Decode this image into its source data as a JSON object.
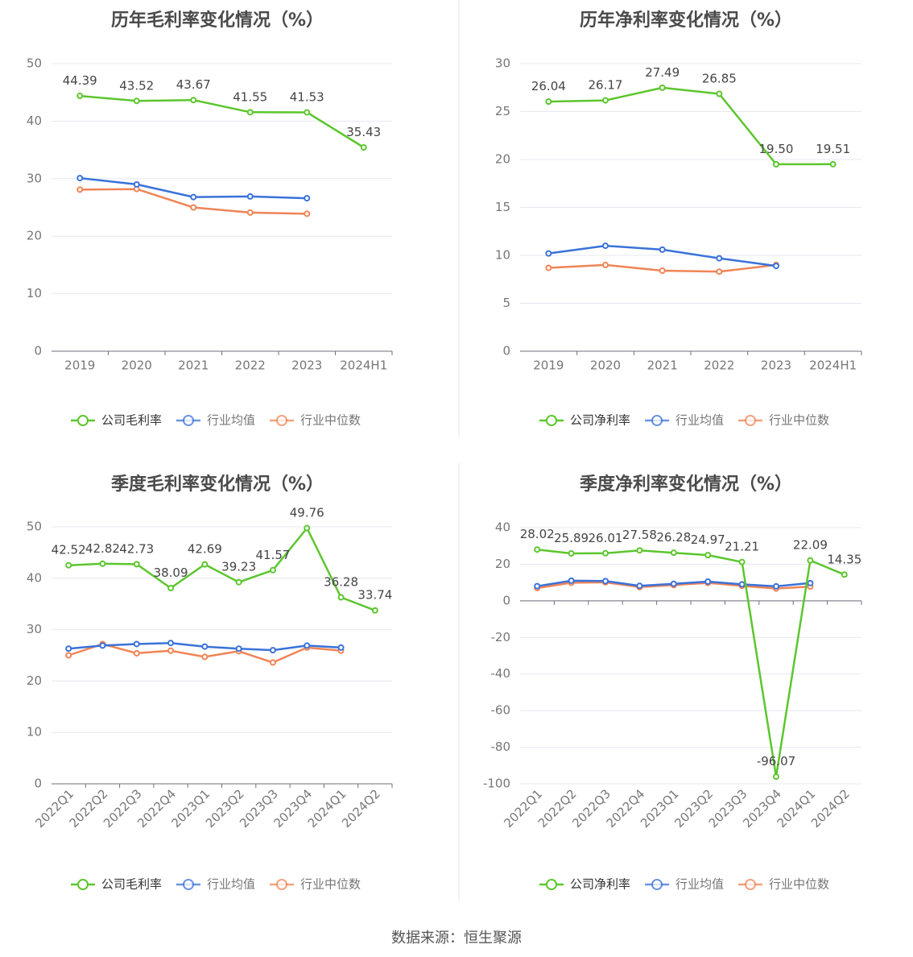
{
  "colors": {
    "company": "#5cc62e",
    "avg": "#3a72d9",
    "median": "#f08456",
    "grid": "#e6e8ef",
    "axis": "#6e7079",
    "text": "#444444",
    "tick": "#777777"
  },
  "source": "数据来源：恒生聚源",
  "chart_data": [
    {
      "type": "line",
      "title": "历年毛利率变化情况（%）",
      "categories": [
        "2019",
        "2020",
        "2021",
        "2022",
        "2023",
        "2024H1"
      ],
      "ylim": [
        0,
        50
      ],
      "yticks": [
        0,
        10,
        20,
        30,
        40,
        50
      ],
      "legend": "bottom",
      "series": [
        {
          "name": "公司毛利率",
          "role": "company",
          "values": [
            44.39,
            43.52,
            43.67,
            41.55,
            41.53,
            35.43
          ],
          "labels": [
            "44.39",
            "43.52",
            "43.67",
            "41.55",
            "41.53",
            "35.43"
          ]
        },
        {
          "name": "行业均值",
          "role": "avg",
          "values": [
            30.1,
            29.0,
            26.8,
            26.9,
            26.6,
            null
          ]
        },
        {
          "name": "行业中位数",
          "role": "median",
          "values": [
            28.1,
            28.2,
            25.0,
            24.1,
            23.9,
            null
          ]
        }
      ]
    },
    {
      "type": "line",
      "title": "历年净利率变化情况（%）",
      "categories": [
        "2019",
        "2020",
        "2021",
        "2022",
        "2023",
        "2024H1"
      ],
      "ylim": [
        0,
        30
      ],
      "yticks": [
        0,
        5,
        10,
        15,
        20,
        25,
        30
      ],
      "legend": "bottom",
      "series": [
        {
          "name": "公司净利率",
          "role": "company",
          "values": [
            26.04,
            26.17,
            27.49,
            26.85,
            19.5,
            19.51
          ],
          "labels": [
            "26.04",
            "26.17",
            "27.49",
            "26.85",
            "19.50",
            "19.51"
          ]
        },
        {
          "name": "行业均值",
          "role": "avg",
          "values": [
            10.2,
            11.0,
            10.6,
            9.7,
            8.9,
            null
          ]
        },
        {
          "name": "行业中位数",
          "role": "median",
          "values": [
            8.7,
            9.0,
            8.4,
            8.3,
            9.0,
            null
          ]
        }
      ]
    },
    {
      "type": "line",
      "title": "季度毛利率变化情况（%）",
      "categories": [
        "2022Q1",
        "2022Q2",
        "2022Q3",
        "2022Q4",
        "2023Q1",
        "2023Q2",
        "2023Q3",
        "2023Q4",
        "2024Q1",
        "2024Q2"
      ],
      "ylim": [
        0,
        50
      ],
      "yticks": [
        0,
        10,
        20,
        30,
        40,
        50
      ],
      "legend": "bottom",
      "series": [
        {
          "name": "公司毛利率",
          "role": "company",
          "values": [
            42.52,
            42.82,
            42.73,
            38.09,
            42.69,
            39.23,
            41.57,
            49.76,
            36.28,
            33.74
          ],
          "labels": [
            "42.52",
            "42.82",
            "42.73",
            "38.09",
            "42.69",
            "39.23",
            "41.57",
            "49.76",
            "36.28",
            "33.74"
          ]
        },
        {
          "name": "行业均值",
          "role": "avg",
          "values": [
            26.3,
            26.9,
            27.2,
            27.4,
            26.7,
            26.3,
            26.0,
            26.9,
            26.5,
            null
          ]
        },
        {
          "name": "行业中位数",
          "role": "median",
          "values": [
            25.0,
            27.2,
            25.4,
            25.9,
            24.7,
            25.8,
            23.6,
            26.5,
            25.9,
            null
          ]
        }
      ]
    },
    {
      "type": "line",
      "title": "季度净利率变化情况（%）",
      "categories": [
        "2022Q1",
        "2022Q2",
        "2022Q3",
        "2022Q4",
        "2023Q1",
        "2023Q2",
        "2023Q3",
        "2023Q4",
        "2024Q1",
        "2024Q2"
      ],
      "ylim": [
        -100,
        40
      ],
      "yticks": [
        -100,
        -80,
        -60,
        -40,
        -20,
        0,
        20,
        40
      ],
      "legend": "bottom",
      "series": [
        {
          "name": "公司净利率",
          "role": "company",
          "values": [
            28.02,
            25.89,
            26.01,
            27.58,
            26.28,
            24.97,
            21.21,
            -96.07,
            22.09,
            14.35
          ],
          "labels": [
            "28.02",
            "25.89",
            "26.01",
            "27.58",
            "26.28",
            "24.97",
            "21.21",
            "-96.07",
            "22.09",
            "14.35"
          ]
        },
        {
          "name": "行业均值",
          "role": "avg",
          "values": [
            8.0,
            11.0,
            10.8,
            8.2,
            9.3,
            10.5,
            9.0,
            7.9,
            9.7,
            null
          ]
        },
        {
          "name": "行业中位数",
          "role": "median",
          "values": [
            7.0,
            9.9,
            10.1,
            7.5,
            8.6,
            9.8,
            8.2,
            6.7,
            7.8,
            null
          ]
        }
      ]
    }
  ]
}
